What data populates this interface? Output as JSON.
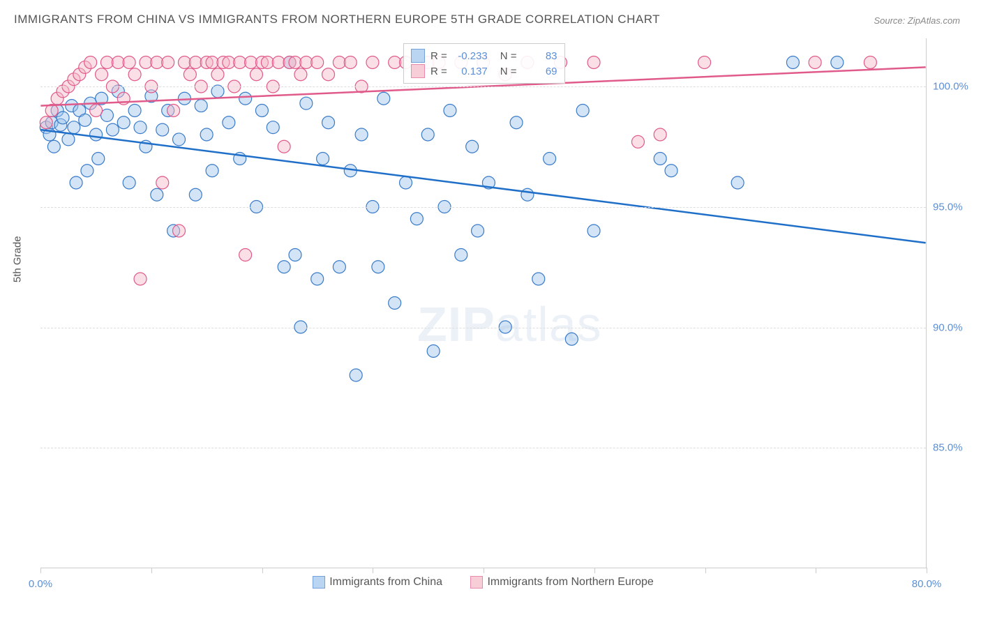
{
  "title": "IMMIGRANTS FROM CHINA VS IMMIGRANTS FROM NORTHERN EUROPE 5TH GRADE CORRELATION CHART",
  "source": "Source: ZipAtlas.com",
  "y_axis_title": "5th Grade",
  "watermark": {
    "part1": "ZIP",
    "part2": "atlas"
  },
  "chart": {
    "type": "scatter",
    "xlim": [
      0,
      80
    ],
    "ylim": [
      80,
      102
    ],
    "x_ticks": [
      0,
      10,
      20,
      30,
      40,
      50,
      60,
      70,
      80
    ],
    "x_tick_labels": {
      "0": "0.0%",
      "80": "80.0%"
    },
    "y_ticks": [
      85,
      90,
      95,
      100
    ],
    "y_tick_labels": [
      "85.0%",
      "90.0%",
      "95.0%",
      "100.0%"
    ],
    "background_color": "#ffffff",
    "grid_color": "#dddddd",
    "marker_radius": 9,
    "marker_opacity": 0.45,
    "line_width": 2.5,
    "series": [
      {
        "name": "Immigrants from China",
        "color_fill": "#9cc4ec",
        "color_stroke": "#3a7bc8",
        "line_color": "#1f6fc9",
        "R": "-0.233",
        "N": "83",
        "trend": {
          "x1": 0,
          "y1": 98.2,
          "x2": 80,
          "y2": 93.5
        },
        "points": [
          [
            0.5,
            98.3
          ],
          [
            0.8,
            98.0
          ],
          [
            1.0,
            98.5
          ],
          [
            1.2,
            97.5
          ],
          [
            1.5,
            99.0
          ],
          [
            1.8,
            98.4
          ],
          [
            2.0,
            98.7
          ],
          [
            2.5,
            97.8
          ],
          [
            2.8,
            99.2
          ],
          [
            3.0,
            98.3
          ],
          [
            3.2,
            96.0
          ],
          [
            3.5,
            99.0
          ],
          [
            4.0,
            98.6
          ],
          [
            4.2,
            96.5
          ],
          [
            4.5,
            99.3
          ],
          [
            5.0,
            98.0
          ],
          [
            5.2,
            97.0
          ],
          [
            5.5,
            99.5
          ],
          [
            6.0,
            98.8
          ],
          [
            6.5,
            98.2
          ],
          [
            7.0,
            99.8
          ],
          [
            7.5,
            98.5
          ],
          [
            8.0,
            96.0
          ],
          [
            8.5,
            99.0
          ],
          [
            9.0,
            98.3
          ],
          [
            9.5,
            97.5
          ],
          [
            10.0,
            99.6
          ],
          [
            10.5,
            95.5
          ],
          [
            11.0,
            98.2
          ],
          [
            11.5,
            99.0
          ],
          [
            12.0,
            94.0
          ],
          [
            12.5,
            97.8
          ],
          [
            13.0,
            99.5
          ],
          [
            14.0,
            95.5
          ],
          [
            14.5,
            99.2
          ],
          [
            15.0,
            98.0
          ],
          [
            15.5,
            96.5
          ],
          [
            16.0,
            99.8
          ],
          [
            17.0,
            98.5
          ],
          [
            18.0,
            97.0
          ],
          [
            18.5,
            99.5
          ],
          [
            19.5,
            95.0
          ],
          [
            20.0,
            99.0
          ],
          [
            21.0,
            98.3
          ],
          [
            22.0,
            92.5
          ],
          [
            22.5,
            101.0
          ],
          [
            23.0,
            93.0
          ],
          [
            23.5,
            90.0
          ],
          [
            24.0,
            99.3
          ],
          [
            25.0,
            92.0
          ],
          [
            25.5,
            97.0
          ],
          [
            26.0,
            98.5
          ],
          [
            27.0,
            92.5
          ],
          [
            28.0,
            96.5
          ],
          [
            28.5,
            88.0
          ],
          [
            29.0,
            98.0
          ],
          [
            30.0,
            95.0
          ],
          [
            30.5,
            92.5
          ],
          [
            31.0,
            99.5
          ],
          [
            32.0,
            91.0
          ],
          [
            33.0,
            96.0
          ],
          [
            34.0,
            94.5
          ],
          [
            35.0,
            98.0
          ],
          [
            35.5,
            89.0
          ],
          [
            36.5,
            95.0
          ],
          [
            37.0,
            99.0
          ],
          [
            38.0,
            93.0
          ],
          [
            39.0,
            97.5
          ],
          [
            39.5,
            94.0
          ],
          [
            40.5,
            96.0
          ],
          [
            42.0,
            90.0
          ],
          [
            43.0,
            98.5
          ],
          [
            44.0,
            95.5
          ],
          [
            45.0,
            92.0
          ],
          [
            46.0,
            97.0
          ],
          [
            48.0,
            89.5
          ],
          [
            49.0,
            99.0
          ],
          [
            50.0,
            94.0
          ],
          [
            56.0,
            97.0
          ],
          [
            57.0,
            96.5
          ],
          [
            63.0,
            96.0
          ],
          [
            68.0,
            101.0
          ],
          [
            72.0,
            101.0
          ]
        ]
      },
      {
        "name": "Immigrants from Northern Europe",
        "color_fill": "#f4b8c8",
        "color_stroke": "#e05a8a",
        "line_color": "#e05a8a",
        "R": "0.137",
        "N": "69",
        "trend": {
          "x1": 0,
          "y1": 99.2,
          "x2": 80,
          "y2": 100.8
        },
        "points": [
          [
            0.5,
            98.5
          ],
          [
            1.0,
            99.0
          ],
          [
            1.5,
            99.5
          ],
          [
            2.0,
            99.8
          ],
          [
            2.5,
            100.0
          ],
          [
            3.0,
            100.3
          ],
          [
            3.5,
            100.5
          ],
          [
            4.0,
            100.8
          ],
          [
            4.5,
            101.0
          ],
          [
            5.0,
            99.0
          ],
          [
            5.5,
            100.5
          ],
          [
            6.0,
            101.0
          ],
          [
            6.5,
            100.0
          ],
          [
            7.0,
            101.0
          ],
          [
            7.5,
            99.5
          ],
          [
            8.0,
            101.0
          ],
          [
            8.5,
            100.5
          ],
          [
            9.0,
            92.0
          ],
          [
            9.5,
            101.0
          ],
          [
            10.0,
            100.0
          ],
          [
            10.5,
            101.0
          ],
          [
            11.0,
            96.0
          ],
          [
            11.5,
            101.0
          ],
          [
            12.0,
            99.0
          ],
          [
            12.5,
            94.0
          ],
          [
            13.0,
            101.0
          ],
          [
            13.5,
            100.5
          ],
          [
            14.0,
            101.0
          ],
          [
            14.5,
            100.0
          ],
          [
            15.0,
            101.0
          ],
          [
            15.5,
            101.0
          ],
          [
            16.0,
            100.5
          ],
          [
            16.5,
            101.0
          ],
          [
            17.0,
            101.0
          ],
          [
            17.5,
            100.0
          ],
          [
            18.0,
            101.0
          ],
          [
            18.5,
            93.0
          ],
          [
            19.0,
            101.0
          ],
          [
            19.5,
            100.5
          ],
          [
            20.0,
            101.0
          ],
          [
            20.5,
            101.0
          ],
          [
            21.0,
            100.0
          ],
          [
            21.5,
            101.0
          ],
          [
            22.0,
            97.5
          ],
          [
            22.5,
            101.0
          ],
          [
            23.0,
            101.0
          ],
          [
            23.5,
            100.5
          ],
          [
            24.0,
            101.0
          ],
          [
            25.0,
            101.0
          ],
          [
            26.0,
            100.5
          ],
          [
            27.0,
            101.0
          ],
          [
            28.0,
            101.0
          ],
          [
            29.0,
            100.0
          ],
          [
            30.0,
            101.0
          ],
          [
            32.0,
            101.0
          ],
          [
            33.0,
            101.0
          ],
          [
            35.0,
            101.0
          ],
          [
            36.0,
            101.0
          ],
          [
            38.0,
            101.0
          ],
          [
            40.0,
            101.0
          ],
          [
            42.0,
            100.5
          ],
          [
            44.0,
            101.0
          ],
          [
            47.0,
            101.0
          ],
          [
            50.0,
            101.0
          ],
          [
            54.0,
            97.7
          ],
          [
            56.0,
            98.0
          ],
          [
            60.0,
            101.0
          ],
          [
            70.0,
            101.0
          ],
          [
            75.0,
            101.0
          ]
        ]
      }
    ]
  },
  "legend_box": {
    "r_label": "R =",
    "n_label": "N ="
  },
  "bottom_legend": [
    "Immigrants from China",
    "Immigrants from Northern Europe"
  ]
}
